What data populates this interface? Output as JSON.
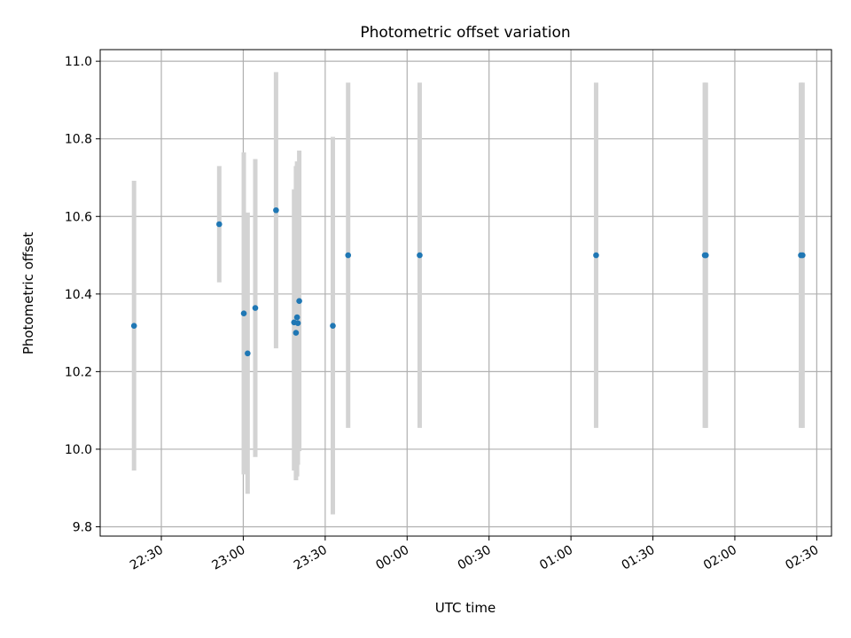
{
  "chart_data": {
    "type": "scatter",
    "title": "Photometric offset variation",
    "xlabel": "UTC time",
    "ylabel": "Photometric offset",
    "x_tick_labels": [
      "22:30",
      "23:00",
      "23:30",
      "00:00",
      "00:30",
      "01:00",
      "01:30",
      "02:00",
      "02:30"
    ],
    "y_tick_labels": [
      "9.8",
      "10.0",
      "10.2",
      "10.4",
      "10.6",
      "10.8",
      "11.0"
    ],
    "y_ticks": [
      9.8,
      10.0,
      10.2,
      10.4,
      10.6,
      10.8,
      11.0
    ],
    "x_ticks_min": [
      1350,
      1380,
      1410,
      1440,
      1470,
      1500,
      1530,
      1560,
      1590
    ],
    "xlim_min": [
      1327.6,
      1595.4
    ],
    "ylim": [
      9.776,
      11.03
    ],
    "x_axis_note": "x values in minutes after 00:00 of the first night (1440 = 00:00 next day)",
    "grid": true,
    "colors": {
      "point": "#1f77b4",
      "errorbar": "#d3d3d3",
      "grid": "#b0b0b0"
    },
    "points": [
      {
        "time": "22:20",
        "x_min": 1340.0,
        "y": 10.318,
        "ylow": 9.945,
        "yhigh": 10.692
      },
      {
        "time": "22:51",
        "x_min": 1371.2,
        "y": 10.58,
        "ylow": 10.43,
        "yhigh": 10.73
      },
      {
        "time": "23:00",
        "x_min": 1380.2,
        "y": 10.35,
        "ylow": 9.935,
        "yhigh": 10.765
      },
      {
        "time": "23:01",
        "x_min": 1381.6,
        "y": 10.247,
        "ylow": 9.885,
        "yhigh": 10.61
      },
      {
        "time": "23:04",
        "x_min": 1384.4,
        "y": 10.364,
        "ylow": 9.98,
        "yhigh": 10.748
      },
      {
        "time": "23:12",
        "x_min": 1392.0,
        "y": 10.616,
        "ylow": 10.26,
        "yhigh": 10.972
      },
      {
        "time": "23:19",
        "x_min": 1398.6,
        "y": 10.327,
        "ylow": 9.945,
        "yhigh": 10.67
      },
      {
        "time": "23:19",
        "x_min": 1399.3,
        "y": 10.3,
        "ylow": 9.92,
        "yhigh": 10.73
      },
      {
        "time": "23:20",
        "x_min": 1399.7,
        "y": 10.34,
        "ylow": 9.93,
        "yhigh": 10.742
      },
      {
        "time": "23:20",
        "x_min": 1400.0,
        "y": 10.325,
        "ylow": 9.96,
        "yhigh": 10.74
      },
      {
        "time": "23:20",
        "x_min": 1400.5,
        "y": 10.382,
        "ylow": 9.995,
        "yhigh": 10.77
      },
      {
        "time": "23:33",
        "x_min": 1412.8,
        "y": 10.318,
        "ylow": 9.832,
        "yhigh": 10.805
      },
      {
        "time": "23:38",
        "x_min": 1418.4,
        "y": 10.5,
        "ylow": 10.055,
        "yhigh": 10.945
      },
      {
        "time": "00:04",
        "x_min": 1444.6,
        "y": 10.5,
        "ylow": 10.055,
        "yhigh": 10.945
      },
      {
        "time": "01:09",
        "x_min": 1509.2,
        "y": 10.5,
        "ylow": 10.055,
        "yhigh": 10.945
      },
      {
        "time": "01:49",
        "x_min": 1549.0,
        "y": 10.5,
        "ylow": 10.055,
        "yhigh": 10.945
      },
      {
        "time": "01:49",
        "x_min": 1549.4,
        "y": 10.5,
        "ylow": 10.055,
        "yhigh": 10.945
      },
      {
        "time": "02:24",
        "x_min": 1584.2,
        "y": 10.5,
        "ylow": 10.055,
        "yhigh": 10.945
      },
      {
        "time": "02:24",
        "x_min": 1584.8,
        "y": 10.5,
        "ylow": 10.055,
        "yhigh": 10.945
      }
    ]
  }
}
